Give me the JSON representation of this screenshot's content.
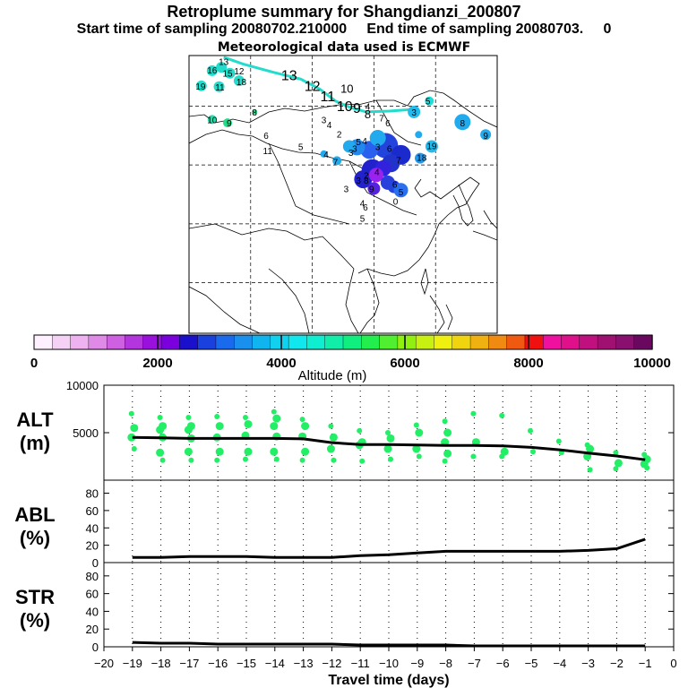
{
  "header": {
    "title": "Retroplume summary for Shangdianzi_200807",
    "subtitle": "Start time of sampling 20080702.210000     End time of sampling 20080703.     0",
    "met": "Meteorological data used is ECMWF"
  },
  "map": {
    "labels": [
      {
        "t": "13",
        "lon": 103.0,
        "lat": 55.5
      },
      {
        "t": "12",
        "lon": 106.0,
        "lat": 54.2
      },
      {
        "t": "11",
        "lon": 108.0,
        "lat": 53.0
      },
      {
        "t": "10",
        "lon": 110.2,
        "lat": 51.8
      },
      {
        "t": "9",
        "lon": 111.8,
        "lat": 51.6
      },
      {
        "t": "10",
        "lon": 110.5,
        "lat": 54.0
      },
      {
        "t": "8",
        "lon": 113.2,
        "lat": 51.0
      },
      {
        "t": "7",
        "lon": 115.0,
        "lat": 50.6
      },
      {
        "t": "6",
        "lon": 115.8,
        "lat": 50.0
      },
      {
        "t": "4",
        "lon": 113.2,
        "lat": 52.0
      },
      {
        "t": "3",
        "lon": 107.5,
        "lat": 50.4
      },
      {
        "t": "4",
        "lon": 108.2,
        "lat": 49.8
      },
      {
        "t": "2",
        "lon": 109.5,
        "lat": 48.7
      },
      {
        "t": "6",
        "lon": 100.0,
        "lat": 48.5
      },
      {
        "t": "5",
        "lon": 104.5,
        "lat": 47.2
      },
      {
        "t": "11",
        "lon": 100.2,
        "lat": 46.7
      },
      {
        "t": "4",
        "lon": 107.8,
        "lat": 46.3
      },
      {
        "t": "7",
        "lon": 109.0,
        "lat": 45.4
      },
      {
        "t": "8",
        "lon": 98.5,
        "lat": 51.3
      },
      {
        "t": "10",
        "lon": 93.0,
        "lat": 50.4
      },
      {
        "t": "9",
        "lon": 95.2,
        "lat": 50.0
      },
      {
        "t": "13",
        "lon": 94.5,
        "lat": 57.3
      },
      {
        "t": "12",
        "lon": 96.5,
        "lat": 56.2
      },
      {
        "t": "16",
        "lon": 93.0,
        "lat": 56.3
      },
      {
        "t": "15",
        "lon": 95.0,
        "lat": 55.9
      },
      {
        "t": "18",
        "lon": 96.8,
        "lat": 54.9
      },
      {
        "t": "19",
        "lon": 91.5,
        "lat": 54.4
      },
      {
        "t": "11",
        "lon": 94.0,
        "lat": 54.3
      },
      {
        "t": "4",
        "lon": 112.8,
        "lat": 47.9
      },
      {
        "t": "5",
        "lon": 112.0,
        "lat": 47.8
      },
      {
        "t": "3",
        "lon": 111.5,
        "lat": 47.0
      },
      {
        "t": "3",
        "lon": 114.5,
        "lat": 47.2
      },
      {
        "t": "3",
        "lon": 111.0,
        "lat": 46.5
      },
      {
        "t": "6",
        "lon": 116.0,
        "lat": 47.0
      },
      {
        "t": "7",
        "lon": 117.2,
        "lat": 45.6
      },
      {
        "t": "4",
        "lon": 114.4,
        "lat": 44.2
      },
      {
        "t": "2",
        "lon": 113.0,
        "lat": 43.8
      },
      {
        "t": "8",
        "lon": 113.0,
        "lat": 43.2
      },
      {
        "t": "3",
        "lon": 112.0,
        "lat": 43.2
      },
      {
        "t": "9",
        "lon": 113.7,
        "lat": 42.2
      },
      {
        "t": "6",
        "lon": 116.7,
        "lat": 42.7
      },
      {
        "t": "5",
        "lon": 117.5,
        "lat": 41.8
      },
      {
        "t": "3",
        "lon": 110.4,
        "lat": 42.2
      },
      {
        "t": "4",
        "lon": 112.5,
        "lat": 40.5
      },
      {
        "t": "6",
        "lon": 112.9,
        "lat": 40.0
      },
      {
        "t": "5",
        "lon": 112.5,
        "lat": 38.7
      },
      {
        "t": "8",
        "lon": 125.5,
        "lat": 50.0
      },
      {
        "t": "9",
        "lon": 128.5,
        "lat": 48.5
      },
      {
        "t": "3",
        "lon": 119.2,
        "lat": 51.3
      },
      {
        "t": "5",
        "lon": 121.0,
        "lat": 52.6
      },
      {
        "t": "19",
        "lon": 121.5,
        "lat": 47.3
      },
      {
        "t": "18",
        "lon": 120.2,
        "lat": 45.9
      },
      {
        "t": "0",
        "lon": 116.8,
        "lat": 40.7
      }
    ]
  },
  "colorbar": {
    "ticks": [
      "0",
      "2000",
      "4000",
      "6000",
      "8000",
      "10000"
    ],
    "label": "Altitude (m)"
  },
  "chart_data": [
    {
      "type": "scatter",
      "name": "ALT",
      "ylabel": "ALT\n(m)",
      "ylabel_lines": [
        "ALT",
        "(m)"
      ],
      "ylim": [
        0,
        10000
      ],
      "yticks": [
        "5000",
        "10000"
      ],
      "xlim": [
        -20,
        0
      ],
      "x": [
        -19,
        -18,
        -17,
        -16,
        -15,
        -14,
        -13,
        -12,
        -11,
        -10,
        -9,
        -8,
        -7,
        -6,
        -5,
        -4,
        -3,
        -2,
        -1
      ],
      "median": [
        4500,
        4450,
        4400,
        4400,
        4400,
        4400,
        4350,
        3950,
        3750,
        3750,
        3700,
        3650,
        3650,
        3600,
        3450,
        3200,
        2850,
        2550,
        2150
      ],
      "samples_y": [
        [
          7000,
          5500,
          4500,
          3300
        ],
        [
          6600,
          5700,
          5300,
          4500,
          2900,
          2100
        ],
        [
          6600,
          5700,
          5300,
          4400,
          3000,
          2100
        ],
        [
          6700,
          5700,
          4500,
          3000,
          2100
        ],
        [
          6600,
          5900,
          4700,
          3000,
          2200
        ],
        [
          7200,
          6500,
          5700,
          4600,
          3000,
          2200
        ],
        [
          6400,
          5700,
          4600,
          3000,
          2100
        ],
        [
          5700,
          4500,
          3300,
          2100
        ],
        [
          5200,
          4000,
          3700,
          2000
        ],
        [
          5000,
          4400,
          3300,
          2200
        ],
        [
          5800,
          5000,
          3300,
          2500
        ],
        [
          6200,
          5000,
          4000,
          2800,
          2000
        ],
        [
          7000,
          4000,
          2500
        ],
        [
          6800,
          3000,
          2500
        ],
        [
          5200,
          3000
        ],
        [
          4100,
          2900
        ],
        [
          3700,
          3300,
          2500,
          1100
        ],
        [
          2900,
          1800,
          1200
        ],
        [
          2700,
          2200,
          1700,
          1300
        ]
      ]
    },
    {
      "type": "line",
      "name": "ABL",
      "ylabel": "ABL\n(%)",
      "ylabel_lines": [
        "ABL",
        "(%)"
      ],
      "ylim": [
        0,
        95
      ],
      "yticks": [
        "0",
        "20",
        "40",
        "60",
        "80"
      ],
      "xlim": [
        -20,
        0
      ],
      "x": [
        -19,
        -18,
        -17,
        -16,
        -15,
        -14,
        -13,
        -12,
        -11,
        -10,
        -9,
        -8,
        -7,
        -6,
        -5,
        -4,
        -3,
        -2,
        -1
      ],
      "values": [
        6,
        6,
        7,
        7,
        7,
        6,
        6,
        6,
        8,
        9,
        11,
        13,
        13,
        13,
        13,
        13,
        14,
        16,
        27
      ]
    },
    {
      "type": "line",
      "name": "STR",
      "ylabel": "STR\n(%)",
      "ylabel_lines": [
        "STR",
        "(%)"
      ],
      "ylim": [
        0,
        95
      ],
      "yticks": [
        "0",
        "20",
        "40",
        "60",
        "80"
      ],
      "xlim": [
        -20,
        0
      ],
      "x": [
        -19,
        -18,
        -17,
        -16,
        -15,
        -14,
        -13,
        -12,
        -11,
        -10,
        -9,
        -8,
        -7,
        -6,
        -5,
        -4,
        -3,
        -2,
        -1
      ],
      "values": [
        5,
        4,
        4,
        3,
        3,
        3,
        3,
        3,
        2,
        2,
        2,
        2,
        1,
        1,
        1,
        1,
        1,
        1,
        1
      ]
    }
  ],
  "xaxis": {
    "ticks": [
      "−20",
      "−19",
      "−18",
      "−17",
      "−16",
      "−15",
      "−14",
      "−13",
      "−12",
      "−11",
      "−10",
      "−9",
      "−8",
      "−7",
      "−6",
      "−5",
      "−4",
      "−3",
      "−2",
      "−1",
      "0"
    ],
    "label": "Travel time (days)"
  },
  "colors": {
    "line": "#000000",
    "alt_markers": "#22ee66",
    "grid": "#000000",
    "land": "#ffffff"
  }
}
